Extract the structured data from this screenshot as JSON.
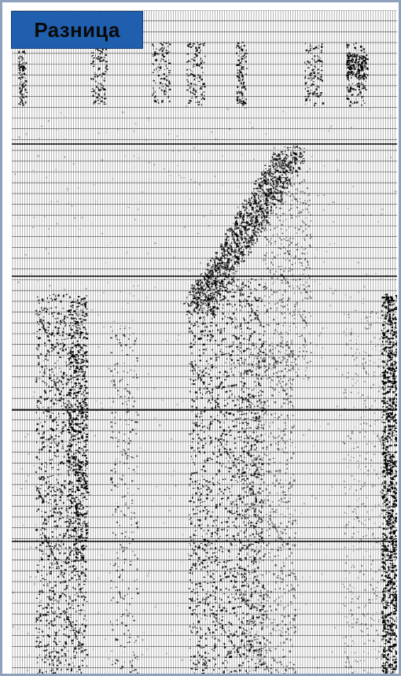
{
  "panel": {
    "title": "Разница",
    "grid_color": "#000000",
    "background_color": "#ffffff",
    "accent_color": "#1f5fae"
  }
}
